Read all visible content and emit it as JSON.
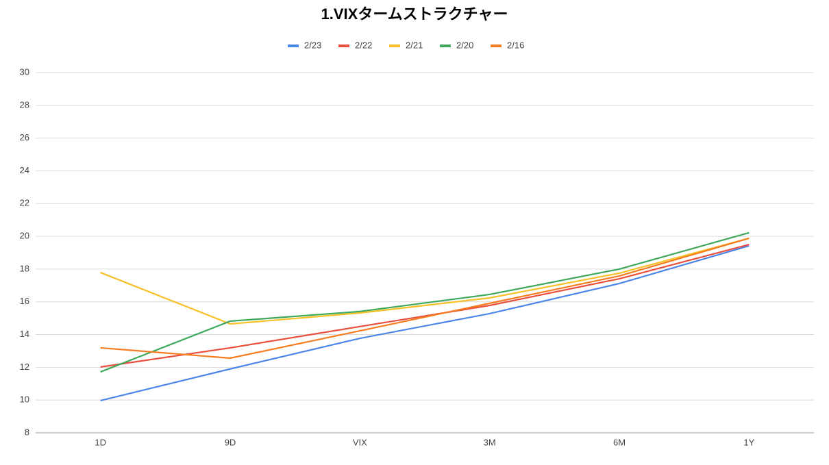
{
  "chart_data": {
    "type": "line",
    "title": "1.VIXタームストラクチャー",
    "categories": [
      "1D",
      "9D",
      "VIX",
      "3M",
      "6M",
      "1Y"
    ],
    "series": [
      {
        "name": "2/23",
        "color": "#4a86e8",
        "values": [
          9.97,
          11.9,
          13.77,
          15.28,
          17.12,
          19.42
        ]
      },
      {
        "name": "2/22",
        "color": "#e94f3d",
        "values": [
          12.02,
          13.19,
          14.49,
          15.78,
          17.41,
          19.5
        ]
      },
      {
        "name": "2/21",
        "color": "#f6c026",
        "values": [
          17.79,
          14.65,
          15.32,
          16.24,
          17.75,
          19.88
        ]
      },
      {
        "name": "2/20",
        "color": "#3ea85a",
        "values": [
          11.72,
          14.82,
          15.41,
          16.45,
          18.0,
          20.22
        ]
      },
      {
        "name": "2/16",
        "color": "#f57c1f",
        "values": [
          13.19,
          12.56,
          14.23,
          15.91,
          17.58,
          19.88
        ]
      }
    ],
    "ylim": [
      8,
      30
    ],
    "yticks": [
      8,
      10,
      12,
      14,
      16,
      18,
      20,
      22,
      24,
      26,
      28,
      30
    ],
    "grid": true,
    "legend": "top"
  }
}
